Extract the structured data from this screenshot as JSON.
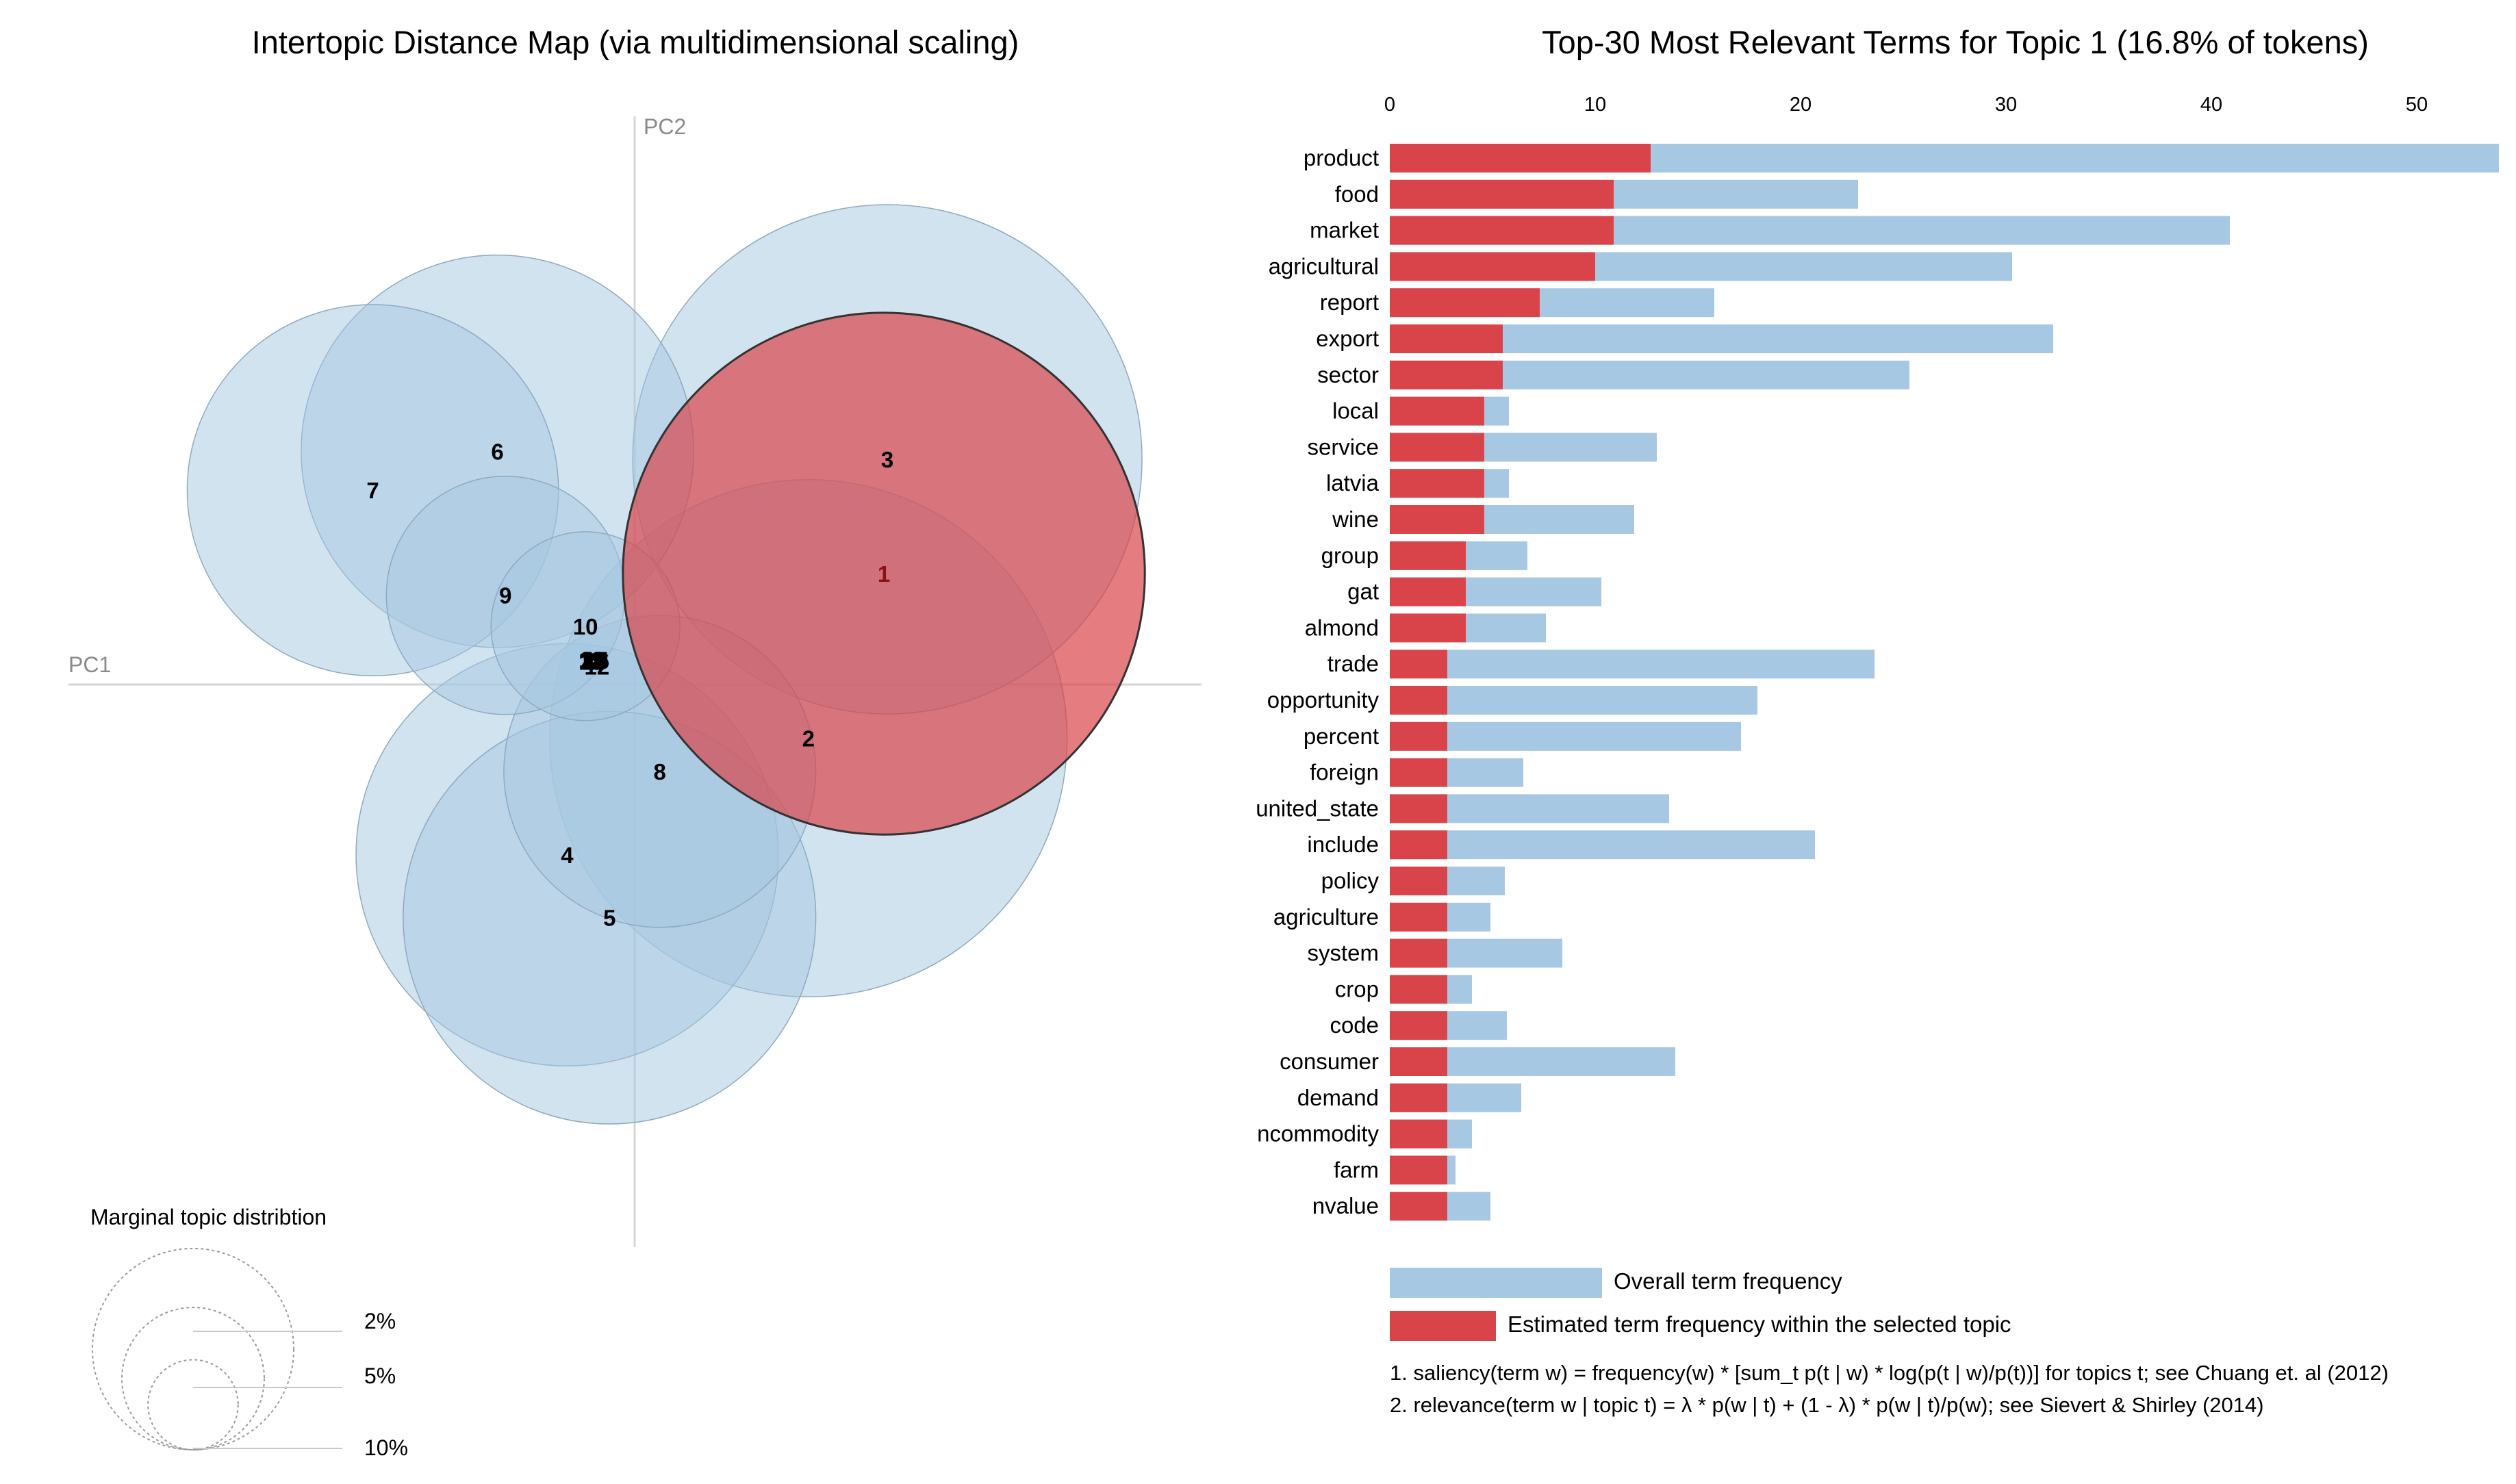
{
  "chart_data": [
    {
      "type": "scatter",
      "title": "Intertopic Distance Map (via multidimensional scaling)",
      "xlabel": "PC1",
      "ylabel": "PC2",
      "selected_topic": "1",
      "topics": [
        {
          "label": "1",
          "pc1": 0.218,
          "pc2": 0.097,
          "size_pct": 16.8,
          "selected": true
        },
        {
          "label": "2",
          "pc1": 0.152,
          "pc2": -0.047,
          "size_pct": 16.5,
          "selected": false
        },
        {
          "label": "3",
          "pc1": 0.221,
          "pc2": 0.197,
          "size_pct": 16.0,
          "selected": false
        },
        {
          "label": "4",
          "pc1": -0.059,
          "pc2": -0.149,
          "size_pct": 11.0,
          "selected": false
        },
        {
          "label": "5",
          "pc1": -0.022,
          "pc2": -0.204,
          "size_pct": 10.5,
          "selected": false
        },
        {
          "label": "6",
          "pc1": -0.12,
          "pc2": 0.204,
          "size_pct": 9.5,
          "selected": false
        },
        {
          "label": "7",
          "pc1": -0.229,
          "pc2": 0.17,
          "size_pct": 8.5,
          "selected": false
        },
        {
          "label": "8",
          "pc1": 0.022,
          "pc2": -0.076,
          "size_pct": 6.0,
          "selected": false
        },
        {
          "label": "9",
          "pc1": -0.113,
          "pc2": 0.078,
          "size_pct": 3.5,
          "selected": false
        },
        {
          "label": "10",
          "pc1": -0.043,
          "pc2": 0.051,
          "size_pct": 2.2,
          "selected": false
        },
        {
          "label": "11",
          "pc1": -0.037,
          "pc2": 0.021,
          "size_pct": 0.0,
          "selected": false
        },
        {
          "label": "12",
          "pc1": -0.033,
          "pc2": 0.016,
          "size_pct": 0.0,
          "selected": false
        },
        {
          "label": "13",
          "pc1": -0.038,
          "pc2": 0.022,
          "size_pct": 0.0,
          "selected": false
        },
        {
          "label": "14",
          "pc1": -0.036,
          "pc2": 0.021,
          "size_pct": 0.0,
          "selected": false
        },
        {
          "label": "15",
          "pc1": -0.034,
          "pc2": 0.022,
          "size_pct": 0.0,
          "selected": false
        },
        {
          "label": "16",
          "pc1": -0.033,
          "pc2": 0.021,
          "size_pct": 0.0,
          "selected": false
        },
        {
          "label": "17",
          "pc1": -0.035,
          "pc2": 0.02,
          "size_pct": 0.0,
          "selected": false
        },
        {
          "label": "18",
          "pc1": -0.038,
          "pc2": 0.02,
          "size_pct": 0.0,
          "selected": false
        },
        {
          "label": "19",
          "pc1": -0.034,
          "pc2": 0.021,
          "size_pct": 0.0,
          "selected": false
        },
        {
          "label": "20",
          "pc1": -0.036,
          "pc2": 0.022,
          "size_pct": 0.0,
          "selected": false
        }
      ],
      "xlim": [
        -0.28,
        0.28
      ],
      "ylim": [
        -0.28,
        0.28
      ],
      "legend": {
        "title": "Marginal topic distribtion",
        "sizes": [
          "2%",
          "5%",
          "10%"
        ],
        "size_values": [
          2,
          5,
          10
        ]
      }
    },
    {
      "type": "bar",
      "orientation": "horizontal",
      "title": "Top-30 Most Relevant Terms for Topic 1 (16.8% of tokens)",
      "xlim": [
        0,
        54
      ],
      "xticks": [
        0,
        10,
        20,
        30,
        40,
        50
      ],
      "categories": [
        "product",
        "food",
        "market",
        "agricultural",
        "report",
        "export",
        "sector",
        "local",
        "service",
        "latvia",
        "wine",
        "group",
        "gat",
        "almond",
        "trade",
        "opportunity",
        "percent",
        "foreign",
        "united_state",
        "include",
        "policy",
        "agriculture",
        "system",
        "crop",
        "code",
        "consumer",
        "demand",
        "ncommodity",
        "farm",
        "nvalue"
      ],
      "series": [
        {
          "name": "Overall term frequency",
          "color": "#a6c8e2",
          "values": [
            54,
            22.8,
            40.9,
            30.3,
            15.8,
            32.3,
            25.3,
            5.8,
            13.0,
            5.8,
            11.9,
            6.7,
            10.3,
            7.6,
            23.6,
            17.9,
            17.1,
            6.5,
            13.6,
            20.7,
            5.6,
            4.9,
            8.4,
            4.0,
            5.7,
            13.9,
            6.4,
            4.0,
            3.2,
            4.9
          ]
        },
        {
          "name": "Estimated term frequency within the selected topic",
          "color": "#d9444a",
          "values": [
            12.7,
            10.9,
            10.9,
            10.0,
            7.3,
            5.5,
            5.5,
            4.6,
            4.6,
            4.6,
            4.6,
            3.7,
            3.7,
            3.7,
            2.8,
            2.8,
            2.8,
            2.8,
            2.8,
            2.8,
            2.8,
            2.8,
            2.8,
            2.8,
            2.8,
            2.8,
            2.8,
            2.8,
            2.8,
            2.8
          ]
        }
      ],
      "legend": [
        {
          "label": "Overall term frequency",
          "color": "#a6c8e2"
        },
        {
          "label": "Estimated term frequency within the selected topic",
          "color": "#d9444a"
        }
      ],
      "notes": [
        "1. saliency(term w) = frequency(w) * [sum_t p(t | w) * log(p(t | w)/p(t))] for topics t; see Chuang et. al (2012)",
        "2. relevance(term w | topic t) = λ * p(w | t) + (1 - λ) * p(w | t)/p(w); see Sievert & Shirley (2014)"
      ]
    }
  ],
  "colors": {
    "bubble_fill": "#a6c8e2",
    "bubble_stroke": "#8fa9bf",
    "selected_fill": "#d9444a",
    "selected_stroke": "#333333",
    "axis_line": "#d5d5d5"
  }
}
